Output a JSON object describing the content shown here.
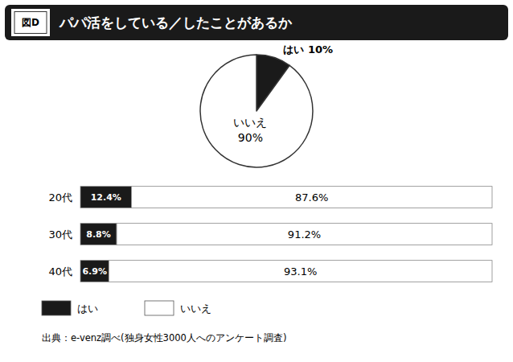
{
  "chart_data": [
    {
      "type": "pie",
      "title": "パパ活をしている／したことがあるか",
      "annotations": [
        "図D"
      ],
      "categories": [
        "はい",
        "いいえ"
      ],
      "values": [
        10,
        90
      ],
      "value_labels": [
        "10%",
        "90%"
      ],
      "colors": [
        "#1a1a1a",
        "#ffffff"
      ],
      "data_labels": true
    },
    {
      "type": "bar",
      "orientation": "horizontal",
      "stacked": true,
      "categories": [
        "20代",
        "30代",
        "40代"
      ],
      "series": [
        {
          "name": "はい",
          "color": "#1a1a1a",
          "values": [
            12.4,
            8.8,
            6.9
          ],
          "value_labels": [
            "12.4%",
            "8.8%",
            "6.9%"
          ]
        },
        {
          "name": "いいえ",
          "color": "#ffffff",
          "values": [
            87.6,
            91.2,
            93.1
          ],
          "value_labels": [
            "87.6%",
            "91.2%",
            "93.1%"
          ]
        }
      ],
      "xlim": [
        0,
        100
      ],
      "tick_labels": false,
      "data_labels": true,
      "legend": "bottom",
      "annotations": [
        "出典：e-venz調べ(独身女性3000人へのアンケート調査)"
      ]
    }
  ]
}
